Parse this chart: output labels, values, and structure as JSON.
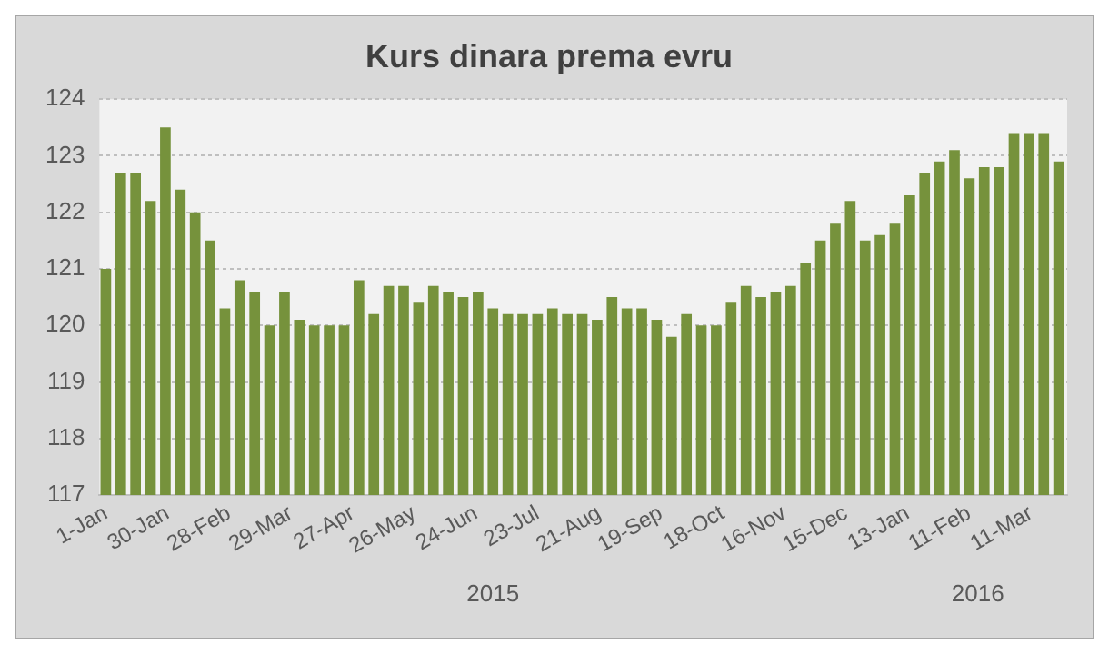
{
  "chart_data": {
    "type": "bar",
    "title": "Kurs dinara prema evru",
    "x": [
      "2015-01-01",
      "2015-01-08",
      "2015-01-15",
      "2015-01-22",
      "2015-01-29",
      "2015-02-05",
      "2015-02-12",
      "2015-02-19",
      "2015-02-26",
      "2015-03-05",
      "2015-03-12",
      "2015-03-19",
      "2015-03-26",
      "2015-04-02",
      "2015-04-09",
      "2015-04-16",
      "2015-04-23",
      "2015-04-30",
      "2015-05-07",
      "2015-05-14",
      "2015-05-21",
      "2015-05-28",
      "2015-06-04",
      "2015-06-11",
      "2015-06-18",
      "2015-06-25",
      "2015-07-02",
      "2015-07-09",
      "2015-07-16",
      "2015-07-23",
      "2015-07-30",
      "2015-08-06",
      "2015-08-13",
      "2015-08-20",
      "2015-08-27",
      "2015-09-03",
      "2015-09-10",
      "2015-09-17",
      "2015-09-24",
      "2015-10-01",
      "2015-10-08",
      "2015-10-15",
      "2015-10-22",
      "2015-10-29",
      "2015-11-05",
      "2015-11-12",
      "2015-11-19",
      "2015-11-26",
      "2015-12-03",
      "2015-12-10",
      "2015-12-17",
      "2015-12-24",
      "2015-12-31",
      "2016-01-07",
      "2016-01-14",
      "2016-01-21",
      "2016-01-28",
      "2016-02-04",
      "2016-02-11",
      "2016-02-18",
      "2016-02-25",
      "2016-03-03",
      "2016-03-10",
      "2016-03-17",
      "2016-03-24"
    ],
    "series": [
      {
        "color": "#76923c",
        "values": [
          121.0,
          122.7,
          122.7,
          122.2,
          123.5,
          122.4,
          122.0,
          121.5,
          120.3,
          120.8,
          120.6,
          120.0,
          120.6,
          120.1,
          120.0,
          120.0,
          120.0,
          120.8,
          120.2,
          120.7,
          120.7,
          120.4,
          120.7,
          120.6,
          120.5,
          120.6,
          120.3,
          120.2,
          120.2,
          120.2,
          120.3,
          120.2,
          120.2,
          120.1,
          120.5,
          120.3,
          120.3,
          120.1,
          119.8,
          120.2,
          120.0,
          120.0,
          120.4,
          120.7,
          120.5,
          120.6,
          120.7,
          121.1,
          121.5,
          121.8,
          122.2,
          121.5,
          121.6,
          121.8,
          122.3,
          122.7,
          122.9,
          123.1,
          122.6,
          122.8,
          122.8,
          123.4,
          123.4,
          123.4,
          122.9
        ]
      }
    ],
    "xlim": [
      "2014-12-29",
      "2016-03-28"
    ],
    "xticks": [
      {
        "value": "2015-01-01",
        "label": "1-Jan"
      },
      {
        "value": "2015-01-30",
        "label": "30-Jan"
      },
      {
        "value": "2015-02-28",
        "label": "28-Feb"
      },
      {
        "value": "2015-03-29",
        "label": "29-Mar"
      },
      {
        "value": "2015-04-27",
        "label": "27-Apr"
      },
      {
        "value": "2015-05-26",
        "label": "26-May"
      },
      {
        "value": "2015-06-24",
        "label": "24-Jun"
      },
      {
        "value": "2015-07-23",
        "label": "23-Jul"
      },
      {
        "value": "2015-08-21",
        "label": "21-Aug"
      },
      {
        "value": "2015-09-19",
        "label": "19-Sep"
      },
      {
        "value": "2015-10-18",
        "label": "18-Oct"
      },
      {
        "value": "2015-11-16",
        "label": "16-Nov"
      },
      {
        "value": "2015-12-15",
        "label": "15-Dec"
      },
      {
        "value": "2016-01-13",
        "label": "13-Jan"
      },
      {
        "value": "2016-02-11",
        "label": "11-Feb"
      },
      {
        "value": "2016-03-11",
        "label": "11-Mar"
      }
    ],
    "ylim": [
      117,
      124
    ],
    "yticks": [
      117,
      118,
      119,
      120,
      121,
      122,
      123,
      124
    ],
    "grid": "y",
    "legend": false,
    "annotations": [
      {
        "text": "2015",
        "x": "2015-07-02"
      },
      {
        "text": "2016",
        "x": "2016-02-15"
      }
    ]
  }
}
